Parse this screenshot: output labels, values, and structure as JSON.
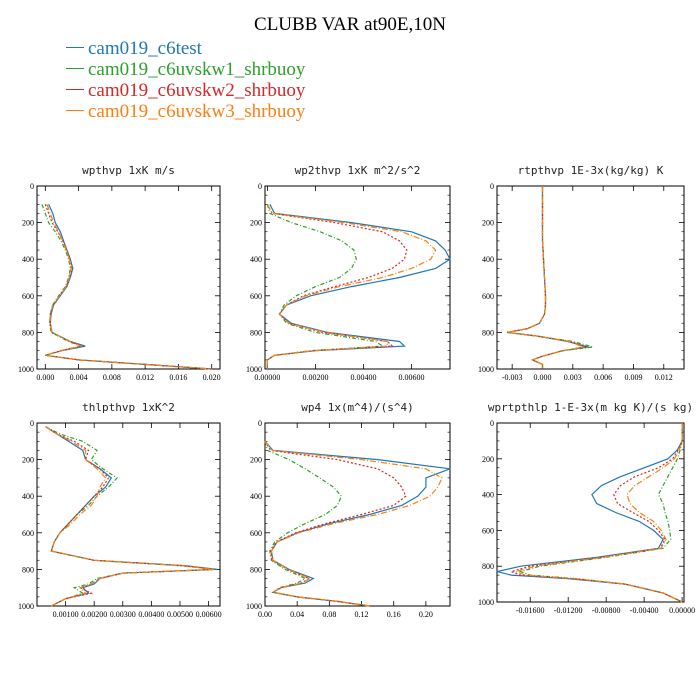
{
  "title": "CLUBB VAR at90E,10N",
  "legend": [
    {
      "label": "cam019_c6test",
      "color": "#1f77b4",
      "dash": ""
    },
    {
      "label": "cam019_c6uvskw1_shrbuoy",
      "color": "#2ca02c",
      "dash": "4,2,1,2"
    },
    {
      "label": "cam019_c6uvskw2_shrbuoy",
      "color": "#d62728",
      "dash": "2,2"
    },
    {
      "label": "cam019_c6uvskw3_shrbuoy",
      "color": "#ff7f0e",
      "dash": "6,2,1,2"
    }
  ],
  "chart_data": [
    {
      "type": "line",
      "title": "wpthvp  1xK m/s",
      "xlim": [
        -0.001,
        0.021
      ],
      "ylim": [
        1000,
        0
      ],
      "xticks": [
        0.0,
        0.004,
        0.008,
        0.012,
        0.016,
        0.02
      ],
      "xtick_labels": [
        "0.000",
        "0.004",
        "0.008",
        "0.012",
        "0.016",
        "0.020"
      ],
      "yticks": [
        0,
        200,
        400,
        600,
        800,
        1000
      ],
      "ytick_labels": [
        "0",
        "200",
        "400",
        "600",
        "800",
        "1000"
      ],
      "y": [
        100,
        150,
        200,
        250,
        300,
        350,
        400,
        450,
        500,
        550,
        600,
        650,
        700,
        750,
        800,
        850,
        875,
        900,
        925,
        950,
        975,
        1000
      ],
      "series": [
        {
          "values": [
            0.0004,
            0.0009,
            0.0012,
            0.0018,
            0.0022,
            0.0026,
            0.003,
            0.0033,
            0.003,
            0.0026,
            0.0018,
            0.001,
            0.0007,
            0.0006,
            0.0008,
            0.003,
            0.0048,
            0.002,
            0.0,
            0.004,
            0.012,
            0.02
          ]
        },
        {
          "values": [
            -0.0004,
            0.0,
            0.0004,
            0.0012,
            0.0019,
            0.0024,
            0.0028,
            0.003,
            0.0028,
            0.0024,
            0.0016,
            0.0009,
            0.0006,
            0.0005,
            0.0007,
            0.0028,
            0.0042,
            0.0018,
            0.0,
            0.004,
            0.012,
            0.02
          ]
        },
        {
          "values": [
            0.0,
            0.0004,
            0.0008,
            0.0015,
            0.0021,
            0.0026,
            0.003,
            0.0032,
            0.0029,
            0.0025,
            0.0017,
            0.0009,
            0.0006,
            0.0006,
            0.0008,
            0.003,
            0.0044,
            0.0019,
            0.0,
            0.004,
            0.012,
            0.02
          ]
        },
        {
          "values": [
            0.0002,
            0.0006,
            0.001,
            0.0016,
            0.0021,
            0.0025,
            0.0029,
            0.0031,
            0.0029,
            0.0025,
            0.0017,
            0.0009,
            0.0006,
            0.0006,
            0.0008,
            0.0029,
            0.0043,
            0.0019,
            0.0,
            0.004,
            0.012,
            0.02
          ]
        }
      ]
    },
    {
      "type": "line",
      "title": "wp2thvp  1xK m^2/s^2",
      "xlim": [
        -0.0001,
        0.0076
      ],
      "ylim": [
        1000,
        0
      ],
      "xticks": [
        0.0,
        0.002,
        0.004,
        0.006
      ],
      "xtick_labels": [
        "0.00000",
        "0.00200",
        "0.00400",
        "0.00600"
      ],
      "yticks": [
        0,
        200,
        400,
        600,
        800,
        1000
      ],
      "ytick_labels": [
        "0",
        "200",
        "400",
        "600",
        "800",
        "1000"
      ],
      "y": [
        100,
        150,
        200,
        250,
        300,
        350,
        400,
        450,
        500,
        550,
        600,
        650,
        700,
        750,
        800,
        850,
        875,
        900,
        925,
        950,
        975,
        1000
      ],
      "series": [
        {
          "values": [
            0.0001,
            0.0003,
            0.0035,
            0.006,
            0.007,
            0.0074,
            0.0076,
            0.007,
            0.0055,
            0.0035,
            0.0018,
            0.0008,
            0.0005,
            0.001,
            0.0025,
            0.0055,
            0.0057,
            0.002,
            0.0003,
            0.0,
            0.0,
            0.0
          ]
        },
        {
          "values": [
            0.0,
            0.0001,
            0.001,
            0.0022,
            0.0031,
            0.0036,
            0.0037,
            0.0035,
            0.003,
            0.002,
            0.0012,
            0.0007,
            0.0005,
            0.0008,
            0.002,
            0.0045,
            0.0048,
            0.0018,
            0.0003,
            0.0,
            0.0,
            0.0
          ]
        },
        {
          "values": [
            0.0,
            0.0002,
            0.0028,
            0.0048,
            0.0055,
            0.0058,
            0.0057,
            0.0052,
            0.0042,
            0.0028,
            0.0015,
            0.0008,
            0.0005,
            0.0009,
            0.0023,
            0.005,
            0.0052,
            0.0019,
            0.0003,
            0.0,
            0.0,
            0.0
          ]
        },
        {
          "values": [
            0.0,
            0.0002,
            0.0032,
            0.0056,
            0.0066,
            0.007,
            0.0068,
            0.006,
            0.0048,
            0.003,
            0.0016,
            0.0008,
            0.0005,
            0.0009,
            0.0024,
            0.005,
            0.005,
            0.0019,
            0.0003,
            0.0,
            0.0,
            0.0
          ]
        }
      ]
    },
    {
      "type": "line",
      "title": "rtpthvp  1E-3x(kg/kg) K",
      "xlim": [
        -0.0045,
        0.014
      ],
      "ylim": [
        1000,
        0
      ],
      "xticks": [
        -0.003,
        0.0,
        0.003,
        0.006,
        0.009,
        0.012
      ],
      "xtick_labels": [
        "-0.003",
        "0.000",
        "0.003",
        "0.006",
        "0.009",
        "0.012"
      ],
      "yticks": [
        0,
        200,
        400,
        600,
        800,
        1000
      ],
      "ytick_labels": [
        "0",
        "200",
        "400",
        "600",
        "800",
        "1000"
      ],
      "y": [
        0,
        100,
        200,
        300,
        400,
        500,
        600,
        650,
        700,
        750,
        780,
        800,
        820,
        850,
        880,
        900,
        930,
        950,
        975,
        1000
      ],
      "series": [
        {
          "values": [
            0.0,
            0.0,
            0.0,
            0.0,
            0.0001,
            0.0002,
            0.0003,
            0.0003,
            0.0002,
            -0.0003,
            -0.0015,
            -0.0035,
            -0.0005,
            0.0025,
            0.0045,
            0.002,
            0.0,
            -0.001,
            0.0,
            0.0
          ]
        },
        {
          "values": [
            0.0,
            0.0,
            0.0,
            0.0,
            0.0001,
            0.0002,
            0.0003,
            0.0003,
            0.0002,
            -0.0003,
            -0.0015,
            -0.0035,
            -0.0005,
            0.003,
            0.005,
            0.002,
            0.0,
            -0.001,
            0.0,
            0.0
          ]
        },
        {
          "values": [
            0.0,
            0.0,
            0.0,
            0.0,
            0.0001,
            0.0002,
            0.0003,
            0.0003,
            0.0002,
            -0.0003,
            -0.0015,
            -0.0035,
            -0.0005,
            0.0028,
            0.0042,
            0.002,
            0.0,
            -0.001,
            0.0,
            0.0
          ]
        },
        {
          "values": [
            0.0,
            0.0,
            0.0,
            0.0,
            0.0001,
            0.0002,
            0.0003,
            0.0003,
            0.0002,
            -0.0003,
            -0.0015,
            -0.0035,
            -0.0005,
            0.0027,
            0.004,
            0.002,
            0.0,
            -0.001,
            0.0,
            0.0
          ]
        }
      ]
    },
    {
      "type": "line",
      "title": "thlpthvp  1xK^2",
      "xlim": [
        0.0,
        0.0064
      ],
      "ylim": [
        1000,
        0
      ],
      "xticks": [
        0.001,
        0.002,
        0.003,
        0.004,
        0.005,
        0.006
      ],
      "xtick_labels": [
        "0.00100",
        "0.00200",
        "0.00300",
        "0.00400",
        "0.00500",
        "0.00600"
      ],
      "yticks": [
        0,
        200,
        400,
        600,
        800,
        1000
      ],
      "ytick_labels": [
        "0",
        "200",
        "400",
        "600",
        "800",
        "1000"
      ],
      "y": [
        20,
        60,
        100,
        150,
        200,
        250,
        300,
        350,
        400,
        450,
        500,
        550,
        600,
        650,
        700,
        750,
        780,
        800,
        820,
        850,
        880,
        900,
        930,
        960,
        1000
      ],
      "series": [
        {
          "values": [
            0.0003,
            0.0007,
            0.0011,
            0.0016,
            0.0017,
            0.0022,
            0.0026,
            0.0024,
            0.002,
            0.0017,
            0.0014,
            0.0011,
            0.0008,
            0.0006,
            0.0005,
            0.002,
            0.0052,
            0.0063,
            0.003,
            0.0022,
            0.002,
            0.0016,
            0.0018,
            0.001,
            0.0005
          ]
        },
        {
          "values": [
            0.0003,
            0.0008,
            0.0016,
            0.0021,
            0.0019,
            0.0023,
            0.0028,
            0.0025,
            0.0021,
            0.0018,
            0.0014,
            0.0011,
            0.0008,
            0.0006,
            0.0005,
            0.002,
            0.005,
            0.0062,
            0.003,
            0.0021,
            0.0018,
            0.0013,
            0.0016,
            0.001,
            0.0005
          ]
        },
        {
          "values": [
            0.0003,
            0.0007,
            0.0013,
            0.0018,
            0.0017,
            0.0022,
            0.0025,
            0.0023,
            0.002,
            0.0017,
            0.0014,
            0.0011,
            0.0008,
            0.0006,
            0.0005,
            0.002,
            0.0051,
            0.0062,
            0.003,
            0.0022,
            0.0019,
            0.0015,
            0.0019,
            0.001,
            0.0005
          ]
        },
        {
          "values": [
            0.0003,
            0.0007,
            0.0012,
            0.0017,
            0.0017,
            0.0021,
            0.0024,
            0.0022,
            0.0021,
            0.0019,
            0.0015,
            0.0012,
            0.0008,
            0.0006,
            0.0005,
            0.002,
            0.0051,
            0.0062,
            0.003,
            0.0022,
            0.0019,
            0.0015,
            0.0017,
            0.001,
            0.0005
          ]
        }
      ]
    },
    {
      "type": "line",
      "title": "wp4  1x(m^4)/(s^4)",
      "xlim": [
        0.0,
        0.23
      ],
      "ylim": [
        1000,
        0
      ],
      "xticks": [
        0.0,
        0.04,
        0.08,
        0.12,
        0.16,
        0.2
      ],
      "xtick_labels": [
        "0.00",
        "0.04",
        "0.08",
        "0.12",
        "0.16",
        "0.20"
      ],
      "yticks": [
        0,
        200,
        400,
        600,
        800,
        1000
      ],
      "ytick_labels": [
        "0",
        "200",
        "400",
        "600",
        "800",
        "1000"
      ],
      "y": [
        100,
        150,
        200,
        250,
        300,
        350,
        400,
        450,
        500,
        550,
        600,
        650,
        700,
        750,
        800,
        850,
        875,
        900,
        925,
        950,
        975,
        1000
      ],
      "series": [
        {
          "values": [
            0.0,
            0.01,
            0.14,
            0.23,
            0.2,
            0.2,
            0.19,
            0.17,
            0.13,
            0.08,
            0.04,
            0.015,
            0.008,
            0.01,
            0.03,
            0.06,
            0.05,
            0.02,
            0.01,
            0.04,
            0.09,
            0.13
          ]
        },
        {
          "values": [
            0.0,
            0.003,
            0.03,
            0.05,
            0.068,
            0.085,
            0.095,
            0.09,
            0.075,
            0.05,
            0.028,
            0.012,
            0.006,
            0.008,
            0.025,
            0.05,
            0.04,
            0.018,
            0.01,
            0.04,
            0.09,
            0.13
          ]
        },
        {
          "values": [
            0.0,
            0.007,
            0.09,
            0.14,
            0.16,
            0.17,
            0.175,
            0.16,
            0.12,
            0.075,
            0.038,
            0.014,
            0.007,
            0.009,
            0.028,
            0.055,
            0.045,
            0.019,
            0.01,
            0.04,
            0.09,
            0.13
          ]
        },
        {
          "values": [
            0.0,
            0.009,
            0.12,
            0.2,
            0.22,
            0.215,
            0.205,
            0.18,
            0.14,
            0.085,
            0.042,
            0.015,
            0.008,
            0.01,
            0.029,
            0.056,
            0.046,
            0.019,
            0.01,
            0.04,
            0.09,
            0.13
          ]
        }
      ]
    },
    {
      "type": "line",
      "title": "wprtpthlp  1-E-3x(m kg K)/(s kg)",
      "xlim": [
        -0.0195,
        0.0002
      ],
      "ylim": [
        1000,
        0
      ],
      "xticks": [
        -0.016,
        -0.012,
        -0.008,
        -0.004,
        0.0
      ],
      "xtick_labels": [
        "-0.01600",
        "-0.01200",
        "-0.00800",
        "-0.00400",
        "0.00000"
      ],
      "yticks": [
        0,
        200,
        400,
        600,
        800,
        1000
      ],
      "ytick_labels": [
        "0",
        "200",
        "400",
        "600",
        "800",
        "1000"
      ],
      "y": [
        0,
        100,
        150,
        200,
        250,
        300,
        350,
        400,
        450,
        500,
        550,
        600,
        650,
        700,
        750,
        800,
        830,
        850,
        870,
        900,
        950,
        1000
      ],
      "series": [
        {
          "values": [
            0.0,
            0.0,
            -0.0005,
            -0.0015,
            -0.004,
            -0.0065,
            -0.0085,
            -0.0095,
            -0.009,
            -0.007,
            -0.0045,
            -0.003,
            -0.002,
            -0.0025,
            -0.009,
            -0.017,
            -0.0195,
            -0.018,
            -0.012,
            -0.006,
            -0.002,
            0.0
          ]
        },
        {
          "values": [
            0.0,
            0.0,
            -0.0002,
            -0.0005,
            -0.001,
            -0.0015,
            -0.002,
            -0.0025,
            -0.002,
            -0.0018,
            -0.0015,
            -0.0013,
            -0.0012,
            -0.002,
            -0.008,
            -0.015,
            -0.017,
            -0.016,
            -0.011,
            -0.006,
            -0.002,
            0.0
          ]
        },
        {
          "values": [
            0.0,
            0.0,
            -0.0004,
            -0.001,
            -0.0025,
            -0.005,
            -0.0065,
            -0.0072,
            -0.0068,
            -0.0052,
            -0.0035,
            -0.0025,
            -0.0018,
            -0.0023,
            -0.0085,
            -0.016,
            -0.018,
            -0.017,
            -0.0115,
            -0.006,
            -0.002,
            0.0
          ]
        },
        {
          "values": [
            0.0,
            0.0,
            -0.0003,
            -0.0008,
            -0.002,
            -0.0035,
            -0.005,
            -0.0058,
            -0.0055,
            -0.0045,
            -0.003,
            -0.0022,
            -0.0017,
            -0.0022,
            -0.0083,
            -0.0155,
            -0.0175,
            -0.0165,
            -0.0112,
            -0.006,
            -0.002,
            0.0
          ]
        }
      ]
    }
  ]
}
